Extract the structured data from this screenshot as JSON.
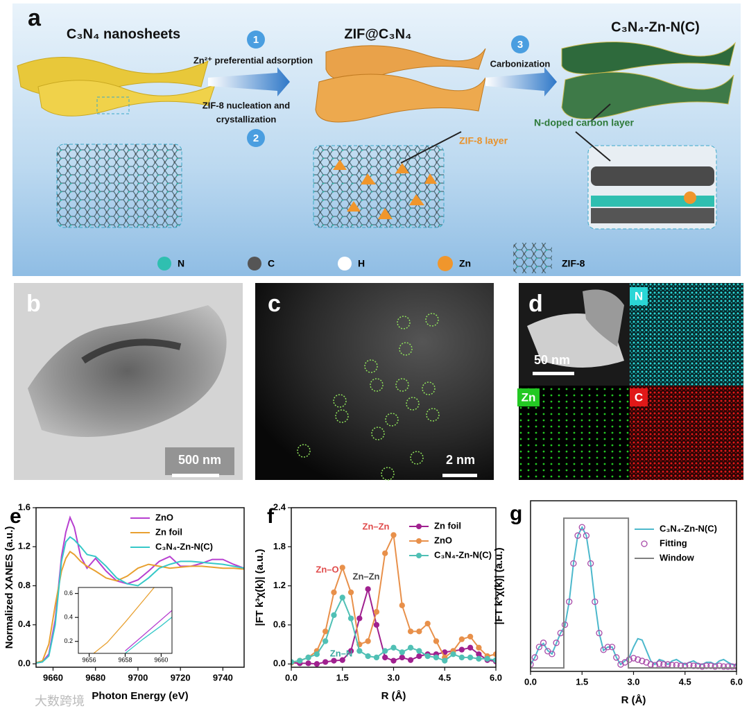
{
  "diagram": {
    "panel": "a",
    "stages": [
      "C₃N₄ nanosheets",
      "ZIF@C₃N₄",
      "C₃N₄-Zn-N(C)"
    ],
    "steps": [
      {
        "number": "1",
        "lines": [
          "Zn²⁺ preferential adsorption"
        ]
      },
      {
        "number": "2",
        "lines": [
          "ZIF-8 nucleation and",
          "crystallization"
        ]
      },
      {
        "number": "3",
        "lines": [
          "Carbonization"
        ]
      }
    ],
    "layers": [
      "ZIF-8 layer",
      "N-doped carbon layer"
    ],
    "legend": [
      "N",
      "C",
      "H",
      "Zn",
      "ZIF-8"
    ]
  },
  "images": [
    {
      "panel": "b",
      "scale_bar": "500 nm"
    },
    {
      "panel": "c",
      "scale_bar": "2 nm"
    },
    {
      "panel": "d",
      "scale_bar": "50 nm",
      "maps": [
        "N",
        "Zn",
        "C"
      ]
    }
  ],
  "watermark": "大数跨境",
  "chart_data": [
    {
      "type": "line",
      "panel": "e",
      "xlabel": "Photon Energy (eV)",
      "ylabel": "Normalized XANES (a.u.)",
      "x": [
        9650,
        9655,
        9658,
        9661,
        9664,
        9666,
        9668,
        9670,
        9673,
        9676,
        9680,
        9685,
        9690,
        9695,
        9700,
        9705,
        9710,
        9715,
        9720,
        9725,
        9730,
        9735,
        9740,
        9745,
        9750
      ],
      "xlim": [
        9652,
        9750
      ],
      "xticks": [
        9660,
        9680,
        9700,
        9720,
        9740
      ],
      "ylim": [
        -0.035,
        1.6
      ],
      "yticks": [
        {
          "value": 0,
          "label": "0.0"
        },
        0.4,
        0.8,
        1.2,
        1.6
      ],
      "legend": "upper right",
      "series": [
        {
          "name": "ZnO",
          "color": "#b73fd0",
          "values": [
            0,
            0.02,
            0.1,
            0.45,
            1.1,
            1.35,
            1.5,
            1.4,
            1.1,
            0.98,
            1.08,
            0.95,
            0.85,
            0.82,
            0.86,
            0.95,
            1.05,
            1.1,
            1.0,
            1.0,
            1.03,
            1.07,
            1.07,
            1.02,
            0.98
          ]
        },
        {
          "name": "Zn foil",
          "color": "#e8a030",
          "values": [
            0,
            0.03,
            0.2,
            0.6,
            0.95,
            1.08,
            1.15,
            1.12,
            1.05,
            1.0,
            0.95,
            0.88,
            0.85,
            0.9,
            0.98,
            1.02,
            1.0,
            0.98,
            0.99,
            1.0,
            1.0,
            0.99,
            0.98,
            0.98,
            0.97
          ]
        },
        {
          "name": "C₃N₄-Zn-N(C)",
          "color": "#36c8c8",
          "values": [
            0,
            0.02,
            0.08,
            0.4,
            1.05,
            1.25,
            1.3,
            1.27,
            1.2,
            1.12,
            1.1,
            1.0,
            0.88,
            0.82,
            0.8,
            0.88,
            0.98,
            1.02,
            1.05,
            1.05,
            1.04,
            1.03,
            1.02,
            1.0,
            0.98
          ]
        }
      ]
    },
    {
      "type": "line",
      "x": [
        9656,
        9657,
        9658,
        9659,
        9660,
        9661
      ],
      "xlim": [
        9655.4,
        9660.6
      ],
      "xticks": [
        9656,
        9658,
        9660
      ],
      "ylim": [
        0.1,
        0.65
      ],
      "yticks": [
        0.2,
        0.4,
        0.6
      ],
      "series": [
        {
          "color": "#b73fd0",
          "values": [
            null,
            null,
            0.12,
            0.25,
            0.38,
            0.51
          ]
        },
        {
          "color": "#e8a030",
          "values": [
            0.07,
            0.19,
            0.36,
            0.54,
            0.72,
            0.9
          ]
        },
        {
          "color": "#36c8c8",
          "values": [
            null,
            null,
            0.1,
            0.22,
            0.33,
            0.45
          ]
        }
      ]
    },
    {
      "type": "line",
      "panel": "f",
      "xlabel": "R (Å)",
      "ylabel": "|FT k³χ(k)| (a.u.)",
      "x": [
        0,
        0.25,
        0.5,
        0.75,
        1,
        1.25,
        1.5,
        1.75,
        2,
        2.25,
        2.5,
        2.75,
        3,
        3.25,
        3.5,
        3.75,
        4,
        4.25,
        4.5,
        4.75,
        5,
        5.25,
        5.5,
        5.75,
        6
      ],
      "xlim": [
        0,
        6
      ],
      "xticks": [
        {
          "value": 0,
          "label": "0.0"
        },
        1.5,
        {
          "value": 3,
          "label": "3.0"
        },
        4.5,
        {
          "value": 6,
          "label": "6.0"
        }
      ],
      "ylim": [
        -0.05,
        2.4
      ],
      "yticks": [
        {
          "value": 0,
          "label": "0.0"
        },
        0.6,
        1.2,
        1.8,
        2.4
      ],
      "legend": "upper right",
      "annotations": [
        {
          "text": "Zn–O",
          "color": "#e04a4a"
        },
        {
          "text": "Zn–Zn",
          "color": "#e04a4a"
        },
        {
          "text": "Zn–Zn",
          "color": "#444444"
        },
        {
          "text": "Zn–N",
          "color": "#3aa8a0"
        }
      ],
      "series": [
        {
          "name": "Zn foil",
          "color": "#a0208f",
          "marker": "filled",
          "values": [
            0.02,
            0.01,
            0.01,
            0.0,
            0.03,
            0.05,
            0.06,
            0.2,
            0.7,
            1.15,
            0.6,
            0.1,
            0.05,
            0.1,
            0.06,
            0.12,
            0.15,
            0.15,
            0.18,
            0.2,
            0.22,
            0.25,
            0.15,
            0.06,
            0.04
          ]
        },
        {
          "name": "ZnO",
          "color": "#e8904a",
          "marker": "filled",
          "values": [
            0.02,
            0.05,
            0.1,
            0.2,
            0.5,
            1.1,
            1.48,
            1.1,
            0.3,
            0.35,
            0.8,
            1.7,
            1.98,
            0.9,
            0.5,
            0.5,
            0.62,
            0.35,
            0.1,
            0.2,
            0.38,
            0.42,
            0.25,
            0.12,
            0.15
          ]
        },
        {
          "name": "C₃N₄-Zn-N(C)",
          "color": "#50c0b5",
          "marker": "filled",
          "values": [
            0.03,
            0.05,
            0.1,
            0.15,
            0.35,
            0.75,
            1.02,
            0.7,
            0.2,
            0.12,
            0.1,
            0.2,
            0.25,
            0.18,
            0.25,
            0.2,
            0.12,
            0.1,
            0.05,
            0.15,
            0.1,
            0.1,
            0.08,
            0.08,
            0.06
          ]
        }
      ]
    },
    {
      "type": "line",
      "panel": "g",
      "xlabel": "R (Å)",
      "ylabel": "|FT k³χ(k)| (a.u.)",
      "x": [
        0,
        0.125,
        0.25,
        0.375,
        0.5,
        0.625,
        0.75,
        0.875,
        1,
        1.125,
        1.25,
        1.375,
        1.5,
        1.625,
        1.75,
        1.875,
        2,
        2.125,
        2.25,
        2.375,
        2.5,
        2.625,
        2.75,
        2.875,
        3,
        3.125,
        3.25,
        3.375,
        3.5,
        3.625,
        3.75,
        3.875,
        4,
        4.125,
        4.25,
        4.375,
        4.5,
        4.625,
        4.75,
        4.875,
        5,
        5.125,
        5.25,
        5.375,
        5.5,
        5.625,
        5.75,
        5.875,
        6
      ],
      "xlim": [
        0,
        6
      ],
      "xticks": [
        {
          "value": 0,
          "label": "0.0"
        },
        1.5,
        {
          "value": 3,
          "label": "3.0"
        },
        4.5,
        {
          "value": 6,
          "label": "6.0"
        }
      ],
      "ylim": [
        -0.05,
        2.4
      ],
      "legend": "upper right",
      "series": [
        {
          "name": "C₃N₄-Zn-N(C)",
          "color": "#4cb8cc",
          "values": [
            0.05,
            0.15,
            0.3,
            0.35,
            0.25,
            0.2,
            0.35,
            0.5,
            0.6,
            0.95,
            1.5,
            1.9,
            2.02,
            1.9,
            1.5,
            0.95,
            0.5,
            0.25,
            0.3,
            0.3,
            0.15,
            0.05,
            0.1,
            0.15,
            0.3,
            0.42,
            0.4,
            0.25,
            0.1,
            0.05,
            0.12,
            0.1,
            0.05,
            0.1,
            0.12,
            0.08,
            0.05,
            0.08,
            0.1,
            0.06,
            0.05,
            0.08,
            0.08,
            0.05,
            0.1,
            0.12,
            0.08,
            0.05,
            0.04
          ]
        },
        {
          "name": "Fitting",
          "color": "#a84aa8",
          "marker": "open",
          "values": [
            0.05,
            0.15,
            0.3,
            0.36,
            0.24,
            0.2,
            0.36,
            0.5,
            0.62,
            0.95,
            1.5,
            1.9,
            2.02,
            1.9,
            1.5,
            0.95,
            0.5,
            0.26,
            0.3,
            0.3,
            0.15,
            0.05,
            0.08,
            0.12,
            0.14,
            0.12,
            0.1,
            0.08,
            0.05,
            0.04,
            0.06,
            0.05,
            0.05,
            0.04,
            0.04,
            0.03,
            0.03,
            0.04,
            0.03,
            0.03,
            0.02,
            0.03,
            0.03,
            0.02,
            0.03,
            0.02,
            0.02,
            0.02,
            0.02
          ]
        },
        {
          "name": "Window",
          "color": "#808080",
          "x": [
            0,
            0.97,
            0.97,
            2.85,
            2.85,
            6
          ],
          "values": [
            0,
            0,
            2.15,
            2.15,
            0,
            0
          ]
        }
      ]
    }
  ]
}
